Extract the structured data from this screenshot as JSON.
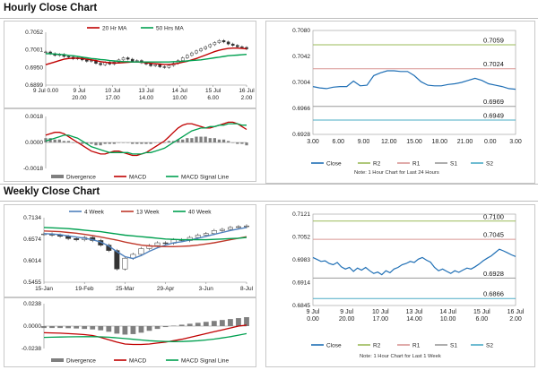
{
  "sections": {
    "hourly_title": "Hourly Close Chart",
    "weekly_title": "Weekly Close Chart"
  },
  "colors": {
    "close": "#1f6fb5",
    "r2": "#9bbb59",
    "r1": "#d99694",
    "s1": "#9a9a9a",
    "s2": "#4bacc6",
    "ma20": "#c00000",
    "ma50": "#00a050",
    "ma4": "#4f81bd",
    "ma13": "#c0392b",
    "ma40": "#00a050",
    "divergence": "#7f7f7f",
    "macd": "#c00000",
    "signal": "#00a050"
  },
  "chart_data": [
    {
      "id": "hourly-candles",
      "type": "candlestick",
      "title": "",
      "legend": [
        "20 Hr MA",
        "50 Hrs MA"
      ],
      "ylim": [
        0.6899,
        0.7052
      ],
      "yticks": [
        "0.7052",
        "0.7001",
        "0.6950",
        "0.6899"
      ],
      "xticks": [
        [
          "9 Jul 0.00",
          ""
        ],
        [
          "9 Jul",
          "20.00"
        ],
        [
          "10 Jul",
          "17.00"
        ],
        [
          "13 Jul",
          "14.00"
        ],
        [
          "14 Jul",
          "10.00"
        ],
        [
          "15 Jul",
          "6.00"
        ],
        [
          "16 Jul",
          "2.00"
        ]
      ],
      "close": [
        0.6995,
        0.699,
        0.6985,
        0.6988,
        0.6982,
        0.698,
        0.6975,
        0.6978,
        0.6972,
        0.6968,
        0.697,
        0.6962,
        0.6958,
        0.6965,
        0.696,
        0.6966,
        0.6972,
        0.6978,
        0.6974,
        0.6968,
        0.697,
        0.6964,
        0.696,
        0.6955,
        0.6958,
        0.6952,
        0.695,
        0.6956,
        0.6962,
        0.697,
        0.6978,
        0.6985,
        0.6992,
        0.6998,
        0.7004,
        0.701,
        0.7016,
        0.7022,
        0.7028,
        0.7024,
        0.7018,
        0.7014,
        0.701,
        0.7008,
        0.7004
      ],
      "ma20": [
        0.6958,
        0.6962,
        0.6966,
        0.697,
        0.6974,
        0.6976,
        0.6977,
        0.6977,
        0.6976,
        0.6974,
        0.6972,
        0.697,
        0.6967,
        0.6965,
        0.6964,
        0.6963,
        0.6963,
        0.6964,
        0.6965,
        0.6966,
        0.6966,
        0.6965,
        0.6964,
        0.6962,
        0.6961,
        0.696,
        0.6959,
        0.6959,
        0.696,
        0.6962,
        0.6965,
        0.6968,
        0.6972,
        0.6976,
        0.6981,
        0.6986,
        0.6991,
        0.6996,
        0.7,
        0.7003,
        0.7005,
        0.7006,
        0.7006,
        0.7005,
        0.7004
      ],
      "ma50": [
        0.699,
        0.699,
        0.6989,
        0.6988,
        0.6987,
        0.6985,
        0.6984,
        0.6982,
        0.698,
        0.6978,
        0.6976,
        0.6975,
        0.6973,
        0.6972,
        0.697,
        0.6969,
        0.6968,
        0.6967,
        0.6967,
        0.6966,
        0.6966,
        0.6966,
        0.6966,
        0.6966,
        0.6966,
        0.6966,
        0.6966,
        0.6966,
        0.6967,
        0.6967,
        0.6968,
        0.6969,
        0.697,
        0.6971,
        0.6972,
        0.6974,
        0.6976,
        0.6978,
        0.698,
        0.6982,
        0.6984,
        0.6985,
        0.6986,
        0.6987,
        0.6988
      ]
    },
    {
      "id": "hourly-macd",
      "type": "bar+line",
      "legend": [
        "Divergence",
        "MACD",
        "MACD Signal Line"
      ],
      "ylim": [
        -0.0018,
        0.0018
      ],
      "yticks": [
        "0.0018",
        "0.0000",
        "-0.0018"
      ],
      "divergence": [
        0.0003,
        0.0003,
        0.0002,
        0.0002,
        0.0001,
        0.0001,
        0.0,
        0.0,
        -0.0001,
        -0.0001,
        -0.0001,
        -0.0002,
        -0.0002,
        -0.0001,
        -0.0001,
        -0.0001,
        0.0,
        0.0,
        0.0,
        -0.0001,
        -0.0001,
        -0.0001,
        -0.0001,
        -0.0001,
        0.0,
        0.0,
        0.0,
        0.0001,
        0.0001,
        0.0002,
        0.0002,
        0.0003,
        0.0003,
        0.0004,
        0.0004,
        0.0004,
        0.0003,
        0.0003,
        0.0002,
        0.0002,
        0.0001,
        0.0,
        -0.0001,
        -0.0001,
        -0.0002
      ],
      "macd": [
        0.0005,
        0.0006,
        0.0007,
        0.0007,
        0.0006,
        0.0004,
        0.0002,
        0.0,
        -0.0002,
        -0.0004,
        -0.0006,
        -0.0007,
        -0.0008,
        -0.0008,
        -0.0007,
        -0.0006,
        -0.0006,
        -0.0007,
        -0.0008,
        -0.0009,
        -0.0009,
        -0.0008,
        -0.0007,
        -0.0005,
        -0.0003,
        -0.0001,
        0.0001,
        0.0004,
        0.0007,
        0.001,
        0.0012,
        0.0013,
        0.0013,
        0.0012,
        0.0011,
        0.001,
        0.001,
        0.0011,
        0.0012,
        0.0013,
        0.0014,
        0.0014,
        0.0013,
        0.0011,
        0.0009
      ],
      "signal": [
        0.0001,
        0.0002,
        0.0003,
        0.0004,
        0.0005,
        0.0005,
        0.0004,
        0.0003,
        0.0001,
        -0.0001,
        -0.0003,
        -0.0004,
        -0.0005,
        -0.0006,
        -0.0007,
        -0.0007,
        -0.0007,
        -0.0007,
        -0.0007,
        -0.0008,
        -0.0008,
        -0.0008,
        -0.0007,
        -0.0007,
        -0.0006,
        -0.0005,
        -0.0004,
        -0.0002,
        0.0,
        0.0002,
        0.0004,
        0.0006,
        0.0008,
        0.0009,
        0.001,
        0.001,
        0.0011,
        0.0011,
        0.0012,
        0.0012,
        0.0013,
        0.0013,
        0.0013,
        0.0012,
        0.0012
      ]
    },
    {
      "id": "hourly-pivot",
      "type": "line",
      "ylim": [
        0.6928,
        0.708
      ],
      "yticks": [
        "0.7080",
        "0.7042",
        "0.7004",
        "0.6966",
        "0.6928"
      ],
      "xticks": [
        "3.00",
        "6.00",
        "9.00",
        "12.00",
        "15.00",
        "18.00",
        "21.00",
        "0.00",
        "3.00"
      ],
      "legend": [
        "Close",
        "R2",
        "R1",
        "S1",
        "S2"
      ],
      "levels": {
        "R2": 0.7059,
        "R1": 0.7024,
        "S1": 0.6969,
        "S2": 0.6949
      },
      "level_labels": {
        "R2": "0.7059",
        "R1": "0.7024",
        "S1": "0.6969",
        "S2": "0.6949"
      },
      "close": [
        0.6998,
        0.6996,
        0.6995,
        0.6997,
        0.6998,
        0.6998,
        0.7006,
        0.6999,
        0.7,
        0.7014,
        0.7018,
        0.7021,
        0.7021,
        0.702,
        0.702,
        0.7014,
        0.7005,
        0.7,
        0.6999,
        0.6999,
        0.7001,
        0.7002,
        0.7004,
        0.7007,
        0.701,
        0.7007,
        0.7002,
        0.7,
        0.6998,
        0.6995,
        0.6994
      ],
      "note": "Note: 1 Hour Chart for Last 24 Hours"
    },
    {
      "id": "weekly-candles",
      "type": "candlestick",
      "legend": [
        "4 Week",
        "13 Week",
        "40 Week"
      ],
      "ylim": [
        0.5455,
        0.7134
      ],
      "yticks": [
        "0.7134",
        "0.6574",
        "0.6014",
        "0.5455"
      ],
      "xticks": [
        "15-Jan",
        "19-Feb",
        "25-Mar",
        "29-Apr",
        "3-Jun",
        "8-Jul"
      ],
      "close": [
        0.671,
        0.668,
        0.665,
        0.659,
        0.656,
        0.662,
        0.654,
        0.642,
        0.628,
        0.58,
        0.608,
        0.618,
        0.633,
        0.641,
        0.648,
        0.647,
        0.656,
        0.654,
        0.662,
        0.668,
        0.672,
        0.68,
        0.683,
        0.688,
        0.69,
        0.692
      ],
      "ma4": [
        0.672,
        0.671,
        0.669,
        0.666,
        0.663,
        0.66,
        0.656,
        0.65,
        0.64,
        0.625,
        0.612,
        0.607,
        0.615,
        0.626,
        0.635,
        0.642,
        0.648,
        0.651,
        0.655,
        0.66,
        0.665,
        0.67,
        0.675,
        0.68,
        0.684,
        0.688
      ],
      "ma13": [
        0.679,
        0.678,
        0.677,
        0.675,
        0.673,
        0.67,
        0.667,
        0.663,
        0.659,
        0.655,
        0.65,
        0.646,
        0.642,
        0.64,
        0.639,
        0.638,
        0.638,
        0.639,
        0.64,
        0.642,
        0.645,
        0.648,
        0.652,
        0.656,
        0.66,
        0.664
      ],
      "ma40": [
        0.688,
        0.687,
        0.686,
        0.685,
        0.683,
        0.681,
        0.679,
        0.677,
        0.674,
        0.671,
        0.668,
        0.666,
        0.664,
        0.662,
        0.66,
        0.658,
        0.657,
        0.656,
        0.656,
        0.656,
        0.656,
        0.657,
        0.658,
        0.659,
        0.66,
        0.662
      ]
    },
    {
      "id": "weekly-macd",
      "type": "bar+line",
      "legend": [
        "Divergence",
        "MACD",
        "MACD Signal Line"
      ],
      "ylim": [
        -0.0238,
        0.0238
      ],
      "yticks": [
        "0.0238",
        "0.0000",
        "-0.0238"
      ],
      "divergence": [
        -0.002,
        -0.002,
        -0.002,
        -0.0022,
        -0.0025,
        -0.003,
        -0.0035,
        -0.0045,
        -0.006,
        -0.008,
        -0.009,
        -0.0085,
        -0.007,
        -0.005,
        -0.003,
        -0.001,
        0.0005,
        0.0015,
        0.0025,
        0.0035,
        0.0045,
        0.0055,
        0.0065,
        0.0075,
        0.0085,
        0.0095
      ],
      "macd": [
        -0.007,
        -0.0072,
        -0.0075,
        -0.008,
        -0.0085,
        -0.009,
        -0.01,
        -0.012,
        -0.0145,
        -0.017,
        -0.019,
        -0.0195,
        -0.0195,
        -0.019,
        -0.018,
        -0.017,
        -0.0155,
        -0.014,
        -0.012,
        -0.01,
        -0.008,
        -0.006,
        -0.004,
        -0.002,
        0.0,
        0.001
      ],
      "signal": [
        -0.012,
        -0.0118,
        -0.0116,
        -0.0114,
        -0.0113,
        -0.0112,
        -0.0112,
        -0.0114,
        -0.0118,
        -0.0125,
        -0.0132,
        -0.014,
        -0.0148,
        -0.0155,
        -0.016,
        -0.0163,
        -0.0165,
        -0.0164,
        -0.016,
        -0.0155,
        -0.0148,
        -0.0138,
        -0.0126,
        -0.0112,
        -0.0096,
        -0.008
      ]
    },
    {
      "id": "weekly-pivot",
      "type": "line",
      "ylim": [
        0.6845,
        0.7121
      ],
      "yticks": [
        "0.7121",
        "0.7052",
        "0.6983",
        "0.6914",
        "0.6845"
      ],
      "xticks": [
        [
          "9 Jul",
          "0.00"
        ],
        [
          "9 Jul",
          "20.00"
        ],
        [
          "10 Jul",
          "17.00"
        ],
        [
          "13 Jul",
          "14.00"
        ],
        [
          "14 Jul",
          "10.00"
        ],
        [
          "15 Jul",
          "6.00"
        ],
        [
          "16 Jul",
          "2.00"
        ]
      ],
      "legend": [
        "Close",
        "R2",
        "R1",
        "S1",
        "S2"
      ],
      "levels": {
        "R2": 0.71,
        "R1": 0.7045,
        "S1": 0.6928,
        "S2": 0.6866
      },
      "level_labels": {
        "R2": "0.7100",
        "R1": "0.7045",
        "S1": "0.6928",
        "S2": "0.6866"
      },
      "close": [
        0.699,
        0.6984,
        0.6978,
        0.698,
        0.6972,
        0.6968,
        0.6975,
        0.6962,
        0.6955,
        0.696,
        0.6948,
        0.6958,
        0.6952,
        0.696,
        0.695,
        0.6942,
        0.6946,
        0.6938,
        0.695,
        0.6944,
        0.6955,
        0.696,
        0.6968,
        0.6972,
        0.6978,
        0.6975,
        0.6985,
        0.699,
        0.6982,
        0.6976,
        0.696,
        0.695,
        0.6955,
        0.6948,
        0.6942,
        0.695,
        0.6945,
        0.6952,
        0.6958,
        0.6955,
        0.6962,
        0.697,
        0.698,
        0.6988,
        0.6995,
        0.7005,
        0.7015,
        0.701,
        0.7004,
        0.6998,
        0.6993
      ],
      "note": "Note: 1 Hour Chart for Last 1 Week"
    }
  ]
}
